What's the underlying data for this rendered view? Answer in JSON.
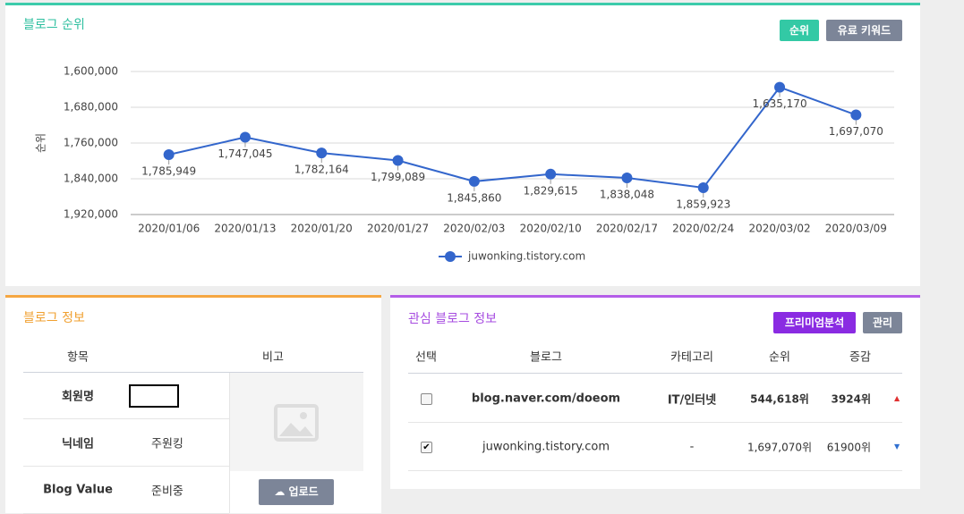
{
  "rank_panel": {
    "title": "블로그 순위",
    "buttons": [
      "순위",
      "유료 키워드"
    ]
  },
  "chart_data": {
    "type": "line",
    "ylabel": "순위",
    "categories": [
      "2020/01/06",
      "2020/01/13",
      "2020/01/20",
      "2020/01/27",
      "2020/02/03",
      "2020/02/10",
      "2020/02/17",
      "2020/02/24",
      "2020/03/02",
      "2020/03/09"
    ],
    "series": [
      {
        "name": "juwonking.tistory.com",
        "color": "#3366cc",
        "values": [
          1785949,
          1747045,
          1782164,
          1799089,
          1845860,
          1829615,
          1838048,
          1859923,
          1635170,
          1697070
        ],
        "value_labels": [
          "1,785,949",
          "1,747,045",
          "1,782,164",
          "1,799,089",
          "1,845,860",
          "1,829,615",
          "1,838,048",
          "1,859,923",
          "1,635,170",
          "1,697,070"
        ]
      }
    ],
    "ylim": [
      1920000,
      1600000
    ],
    "yticks": [
      {
        "value": 1600000,
        "label": "1,600,000"
      },
      {
        "value": 1680000,
        "label": "1,680,000"
      },
      {
        "value": 1760000,
        "label": "1,760,000"
      },
      {
        "value": 1840000,
        "label": "1,840,000"
      },
      {
        "value": 1920000,
        "label": "1,920,000"
      }
    ],
    "grid": true,
    "legend": "bottom"
  },
  "info_panel": {
    "title": "블로그 정보",
    "headers": [
      "항목",
      "비고"
    ],
    "rows": [
      [
        "회원명",
        ""
      ],
      [
        "닉네임",
        "주원킹"
      ],
      [
        "Blog Value",
        "준비중"
      ]
    ],
    "upload": "업로드"
  },
  "interest_panel": {
    "title": "관심 블로그 정보",
    "buttons": [
      "프리미엄분석",
      "관리"
    ],
    "headers": [
      "선택",
      "블로그",
      "카테고리",
      "순위",
      "증감"
    ],
    "rows": [
      {
        "selected": false,
        "blog": "blog.naver.com/doeom",
        "category": "IT/인터넷",
        "rank": "544,618위",
        "change": "3924위",
        "trend": "up"
      },
      {
        "selected": true,
        "blog": "juwonking.tistory.com",
        "category": "-",
        "rank": "1,697,070위",
        "change": "61900위",
        "trend": "down"
      }
    ]
  }
}
